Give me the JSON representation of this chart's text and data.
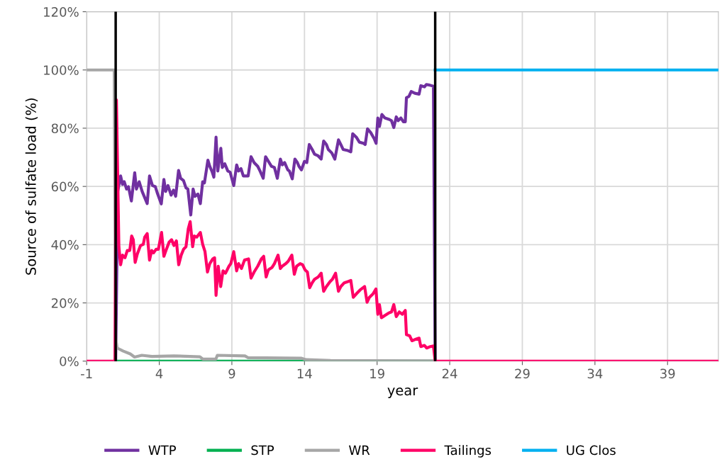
{
  "chart_data": {
    "type": "line",
    "xlabel": "year",
    "ylabel": "Source of sulfate load (%)",
    "xlim": [
      -1,
      42.5
    ],
    "xticks": [
      -1,
      4,
      9,
      14,
      19,
      24,
      29,
      34,
      39
    ],
    "ylim": [
      0,
      120
    ],
    "yticks": [
      {
        "value": 0,
        "label": "0%"
      },
      {
        "value": 20,
        "label": "20%"
      },
      {
        "value": 40,
        "label": "40%"
      },
      {
        "value": 60,
        "label": "60%"
      },
      {
        "value": 80,
        "label": "80%"
      },
      {
        "value": 100,
        "label": "100%"
      },
      {
        "value": 120,
        "label": "120%"
      }
    ],
    "grid": true,
    "legend": "bottom",
    "marker": "none",
    "line_style": "solid",
    "ref_lines": [
      {
        "axis": "x",
        "value": 1,
        "label": null,
        "color": "#000000"
      },
      {
        "axis": "x",
        "value": 23,
        "label": null,
        "color": "#000000"
      }
    ],
    "series": [
      {
        "name": "WTP",
        "color": "#7030a0",
        "x": [
          1.0,
          1.14,
          1.34,
          1.47,
          1.59,
          1.75,
          1.88,
          2.08,
          2.31,
          2.43,
          2.62,
          2.82,
          3.17,
          3.33,
          3.53,
          3.73,
          3.89,
          4.14,
          4.32,
          4.44,
          4.6,
          4.82,
          4.98,
          5.13,
          5.33,
          5.47,
          5.67,
          5.84,
          5.97,
          6.17,
          6.33,
          6.46,
          6.66,
          6.83,
          6.99,
          7.11,
          7.35,
          7.48,
          7.65,
          7.76,
          7.91,
          8.03,
          8.24,
          8.34,
          8.51,
          8.72,
          8.88,
          9.13,
          9.33,
          9.46,
          9.63,
          9.79,
          10.12,
          10.32,
          10.53,
          10.78,
          10.94,
          11.16,
          11.32,
          11.52,
          11.73,
          11.93,
          12.13,
          12.34,
          12.47,
          12.63,
          12.85,
          12.96,
          13.16,
          13.34,
          13.51,
          13.62,
          13.79,
          14.0,
          14.16,
          14.33,
          14.53,
          14.69,
          14.94,
          15.15,
          15.32,
          15.51,
          15.64,
          15.88,
          16.09,
          16.34,
          16.5,
          16.66,
          16.99,
          17.19,
          17.32,
          17.57,
          17.78,
          18.06,
          18.18,
          18.34,
          18.56,
          18.8,
          18.93,
          19.05,
          19.16,
          19.33,
          19.54,
          19.79,
          19.99,
          20.15,
          20.32,
          20.45,
          20.64,
          20.81,
          20.94,
          21.02,
          21.19,
          21.35,
          21.6,
          21.89,
          22.01,
          22.26,
          22.39,
          22.62,
          22.88,
          23.0
        ],
        "values": [
          0,
          58.3,
          63.6,
          60.7,
          61.6,
          59.1,
          59.9,
          55.0,
          64.7,
          59.1,
          61.6,
          58.3,
          54.1,
          63.6,
          60.3,
          59.9,
          57.4,
          54.0,
          62.4,
          58.3,
          60.3,
          57.0,
          58.7,
          56.6,
          65.5,
          62.8,
          62.0,
          59.5,
          59.1,
          50.2,
          59.1,
          56.6,
          57.4,
          54.1,
          61.6,
          61.2,
          69.0,
          66.9,
          64.9,
          63.2,
          76.9,
          65.3,
          73.1,
          66.5,
          67.8,
          65.3,
          64.9,
          60.3,
          67.4,
          65.3,
          66.1,
          63.6,
          63.6,
          70.2,
          68.2,
          66.9,
          65.3,
          62.8,
          70.2,
          68.6,
          66.9,
          66.5,
          62.8,
          69.4,
          67.4,
          68.2,
          65.7,
          65.3,
          62.6,
          69.4,
          68.2,
          66.9,
          65.7,
          68.6,
          68.2,
          74.4,
          72.7,
          71.1,
          70.5,
          69.4,
          75.6,
          74.4,
          72.7,
          71.5,
          69.4,
          76.0,
          74.4,
          72.7,
          72.3,
          71.9,
          78.1,
          76.9,
          75.2,
          74.8,
          74.4,
          79.8,
          78.5,
          76.4,
          74.8,
          83.5,
          80.6,
          84.7,
          83.5,
          83.1,
          82.6,
          80.2,
          83.9,
          82.6,
          83.5,
          82.2,
          82.2,
          90.5,
          90.9,
          92.6,
          92.0,
          91.7,
          94.6,
          94.2,
          95.0,
          94.8,
          94.4,
          0
        ]
      },
      {
        "name": "STP",
        "color": "#00b050",
        "x": [
          1.0,
          23.0
        ],
        "values": [
          0,
          0
        ]
      },
      {
        "name": "WR",
        "color": "#a6a6a6",
        "x": [
          -1,
          0.9,
          1.0,
          1.1,
          1.5,
          2.0,
          2.3,
          2.8,
          3.5,
          5.0,
          6.8,
          7.0,
          7.9,
          8.0,
          9.9,
          10.1,
          13.8,
          14.1,
          15.8,
          22.9,
          23.0
        ],
        "values": [
          100,
          100,
          8,
          4.5,
          3.5,
          2.5,
          1.4,
          2.0,
          1.6,
          1.8,
          1.5,
          0.7,
          0.7,
          2.0,
          1.8,
          1.2,
          1.0,
          0.5,
          0.2,
          0.1,
          0
        ]
      },
      {
        "name": "Tailings",
        "color": "#ff0066",
        "x": [
          -1,
          0.95,
          1.05,
          1.22,
          1.34,
          1.47,
          1.64,
          1.8,
          1.97,
          2.1,
          2.21,
          2.34,
          2.49,
          2.71,
          2.9,
          3.0,
          3.17,
          3.33,
          3.48,
          3.61,
          3.78,
          3.94,
          4.16,
          4.32,
          4.49,
          4.68,
          4.85,
          5.01,
          5.18,
          5.34,
          5.51,
          5.67,
          5.84,
          6.0,
          6.13,
          6.3,
          6.41,
          6.58,
          6.83,
          6.99,
          7.15,
          7.32,
          7.48,
          7.68,
          7.81,
          7.91,
          8.06,
          8.23,
          8.39,
          8.56,
          8.8,
          8.93,
          9.13,
          9.33,
          9.46,
          9.66,
          9.87,
          10.15,
          10.32,
          10.53,
          10.78,
          11.03,
          11.19,
          11.36,
          11.52,
          11.77,
          11.93,
          12.18,
          12.34,
          12.47,
          12.72,
          12.88,
          13.13,
          13.3,
          13.46,
          13.7,
          13.87,
          14.03,
          14.2,
          14.36,
          14.53,
          14.69,
          14.94,
          15.15,
          15.32,
          15.51,
          15.76,
          15.92,
          16.14,
          16.34,
          16.5,
          16.74,
          16.99,
          17.19,
          17.36,
          17.57,
          17.82,
          18.14,
          18.31,
          18.47,
          18.72,
          18.92,
          19.05,
          19.16,
          19.3,
          19.54,
          19.79,
          19.99,
          20.15,
          20.32,
          20.53,
          20.74,
          20.94,
          21.02,
          21.24,
          21.4,
          21.6,
          21.89,
          22.01,
          22.26,
          22.42,
          22.67,
          22.88,
          23.0,
          42.5
        ],
        "values": [
          0,
          0,
          89.7,
          39.3,
          33.1,
          36.4,
          35.5,
          38.0,
          38.0,
          43.0,
          41.7,
          33.9,
          36.8,
          39.7,
          40.1,
          42.6,
          43.8,
          34.7,
          38.0,
          37.2,
          38.4,
          38.4,
          44.2,
          36.0,
          38.4,
          40.9,
          41.7,
          39.7,
          41.3,
          33.1,
          36.4,
          38.4,
          39.3,
          45.5,
          47.9,
          39.3,
          43.0,
          42.6,
          44.2,
          40.1,
          37.6,
          30.6,
          33.5,
          35.1,
          35.5,
          22.6,
          32.6,
          25.6,
          31.0,
          30.2,
          32.6,
          33.5,
          37.6,
          31.0,
          33.5,
          31.8,
          34.7,
          35.1,
          28.5,
          30.6,
          32.6,
          35.1,
          36.0,
          28.9,
          31.4,
          32.2,
          33.5,
          36.4,
          31.8,
          32.6,
          33.5,
          34.3,
          36.4,
          29.8,
          32.6,
          33.5,
          33.1,
          31.4,
          30.6,
          25.2,
          26.9,
          28.1,
          28.9,
          30.2,
          24.0,
          25.6,
          27.3,
          28.1,
          30.2,
          24.0,
          25.6,
          26.9,
          27.3,
          27.7,
          21.9,
          23.1,
          24.4,
          25.6,
          20.2,
          21.9,
          23.1,
          24.8,
          16.1,
          19.4,
          14.9,
          15.7,
          16.5,
          16.9,
          19.4,
          15.3,
          16.9,
          16.1,
          17.4,
          9.1,
          8.7,
          7.0,
          7.4,
          7.9,
          5.0,
          5.4,
          4.5,
          5.0,
          5.2,
          0,
          0
        ]
      },
      {
        "name": "UG Clos",
        "color": "#00b0f0",
        "x": [
          23.0,
          42.5
        ],
        "values": [
          100,
          100
        ]
      }
    ]
  }
}
